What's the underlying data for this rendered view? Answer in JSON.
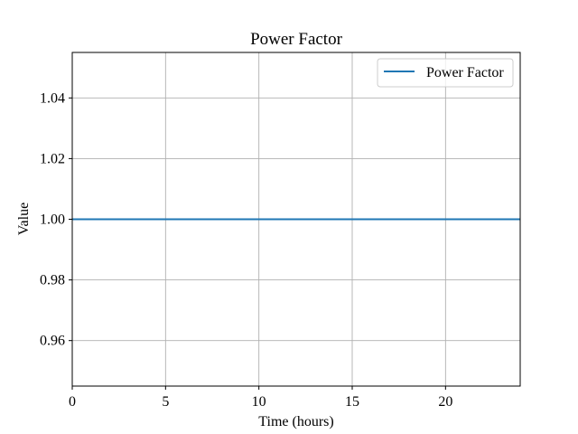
{
  "chart_data": {
    "type": "line",
    "title": "Power Factor",
    "xlabel": "Time (hours)",
    "ylabel": "Value",
    "xlim": [
      0,
      24
    ],
    "ylim": [
      0.945,
      1.055
    ],
    "xticks": [
      0,
      5,
      10,
      15,
      20
    ],
    "yticks": [
      0.96,
      0.98,
      1.0,
      1.02,
      1.04
    ],
    "ytick_labels": [
      "0.96",
      "0.98",
      "1.00",
      "1.02",
      "1.04"
    ],
    "grid": true,
    "legend": "top-right",
    "series": [
      {
        "name": "Power Factor",
        "color": "#1f77b4",
        "x": [
          0,
          24
        ],
        "y": [
          1.0,
          1.0
        ]
      }
    ]
  }
}
